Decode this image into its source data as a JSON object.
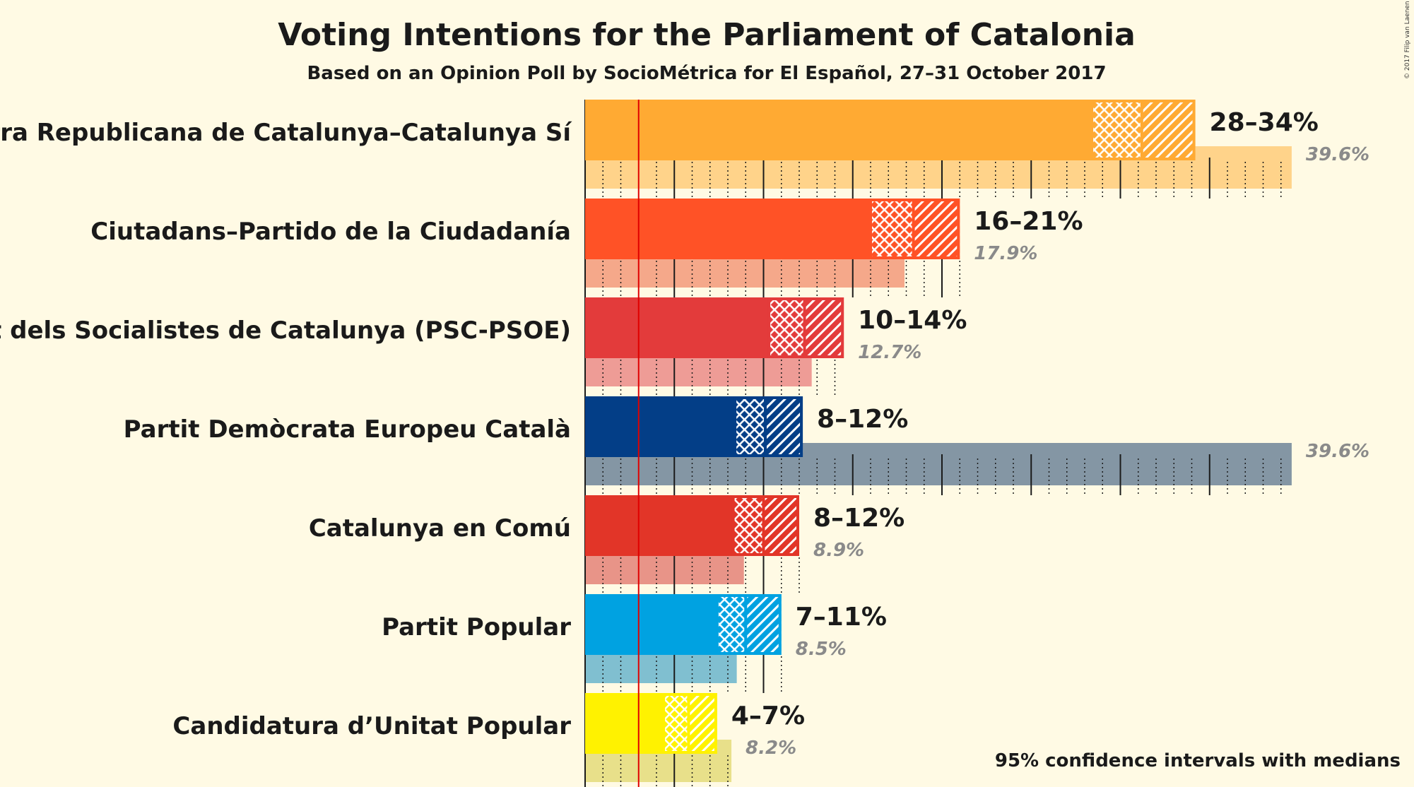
{
  "chart_data": {
    "type": "bar",
    "orientation": "horizontal",
    "title": "Voting Intentions for the Parliament of Catalonia",
    "subtitle": "Based on an Opinion Poll by SocioMétrica for El Español, 27–31 October 2017",
    "caption": "95% confidence intervals with medians",
    "copyright": "© 2017 Filip van Laenen",
    "threshold": 3,
    "x_max": 40,
    "parties": [
      {
        "name": "Esquerra Republicana de Catalunya–Catalunya Sí",
        "range_label": "28–34%",
        "previous_label": "39.6%",
        "low": 28.4,
        "median": 31.2,
        "high": 34.2,
        "previous": 39.6,
        "color": "#FFAA33",
        "prev_color": "#FFD38A"
      },
      {
        "name": "Ciutadans–Partido de la Ciudadanía",
        "range_label": "16–21%",
        "previous_label": "17.9%",
        "low": 16.0,
        "median": 18.4,
        "high": 21.0,
        "previous": 17.9,
        "color": "#FF5226",
        "prev_color": "#F5A88A"
      },
      {
        "name": "Partit dels Socialistes de Catalunya (PSC-PSOE)",
        "range_label": "10–14%",
        "previous_label": "12.7%",
        "low": 10.3,
        "median": 12.3,
        "high": 14.5,
        "previous": 12.7,
        "color": "#E33B3B",
        "prev_color": "#EE9C96"
      },
      {
        "name": "Partit Demòcrata Europeu Català",
        "range_label": "8–12%",
        "previous_label": "39.6%",
        "low": 8.4,
        "median": 10.1,
        "high": 12.2,
        "previous": 39.6,
        "color": "#033E87",
        "prev_color": "#8496A4"
      },
      {
        "name": "Catalunya en Comú",
        "range_label": "8–12%",
        "previous_label": "8.9%",
        "low": 8.3,
        "median": 10.0,
        "high": 12.0,
        "previous": 8.9,
        "color": "#E23528",
        "prev_color": "#E89488"
      },
      {
        "name": "Partit Popular",
        "range_label": "7–11%",
        "previous_label": "8.5%",
        "low": 7.4,
        "median": 9.0,
        "high": 11.0,
        "previous": 8.5,
        "color": "#00A2E1",
        "prev_color": "#80BFD0"
      },
      {
        "name": "Candidatura d’Unitat Popular",
        "range_label": "4–7%",
        "previous_label": "8.2%",
        "low": 4.4,
        "median": 5.8,
        "high": 7.4,
        "previous": 8.2,
        "color": "#FFF200",
        "prev_color": "#E8E08A"
      }
    ]
  }
}
